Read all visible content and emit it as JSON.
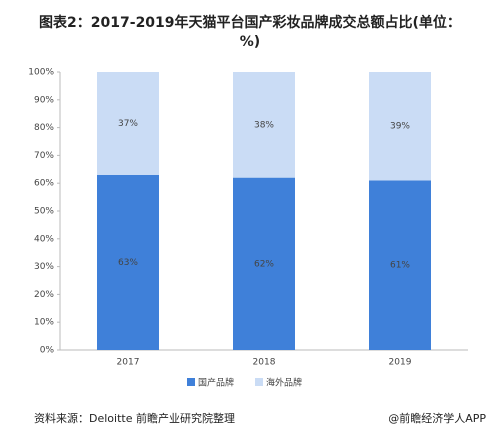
{
  "chart_data": {
    "type": "stacked_bar",
    "title": "图表2：2017-2019年天猫平台国产彩妆品牌成交总额占比(单位：%)",
    "categories": [
      "2017",
      "2018",
      "2019"
    ],
    "series": [
      {
        "name": "国产品牌",
        "color": "#3f80d9",
        "values": [
          63,
          62,
          61
        ],
        "value_labels": [
          "63%",
          "62%",
          "61%"
        ]
      },
      {
        "name": "海外品牌",
        "color": "#cadcf5",
        "values": [
          37,
          38,
          39
        ],
        "value_labels": [
          "37%",
          "38%",
          "39%"
        ]
      }
    ],
    "ylim": [
      0,
      100
    ],
    "yticks": [
      {
        "value": 0,
        "label": "0%"
      },
      {
        "value": 10,
        "label": "10%"
      },
      {
        "value": 20,
        "label": "20%"
      },
      {
        "value": 30,
        "label": "30%"
      },
      {
        "value": 40,
        "label": "40%"
      },
      {
        "value": 50,
        "label": "50%"
      },
      {
        "value": 60,
        "label": "60%"
      },
      {
        "value": 70,
        "label": "70%"
      },
      {
        "value": 80,
        "label": "80%"
      },
      {
        "value": 90,
        "label": "90%"
      },
      {
        "value": 100,
        "label": "100%"
      }
    ],
    "legend": "bottom"
  },
  "footer": {
    "source": "资料来源：Deloitte 前瞻产业研究院整理",
    "brand": "@前瞻经济学人APP"
  }
}
